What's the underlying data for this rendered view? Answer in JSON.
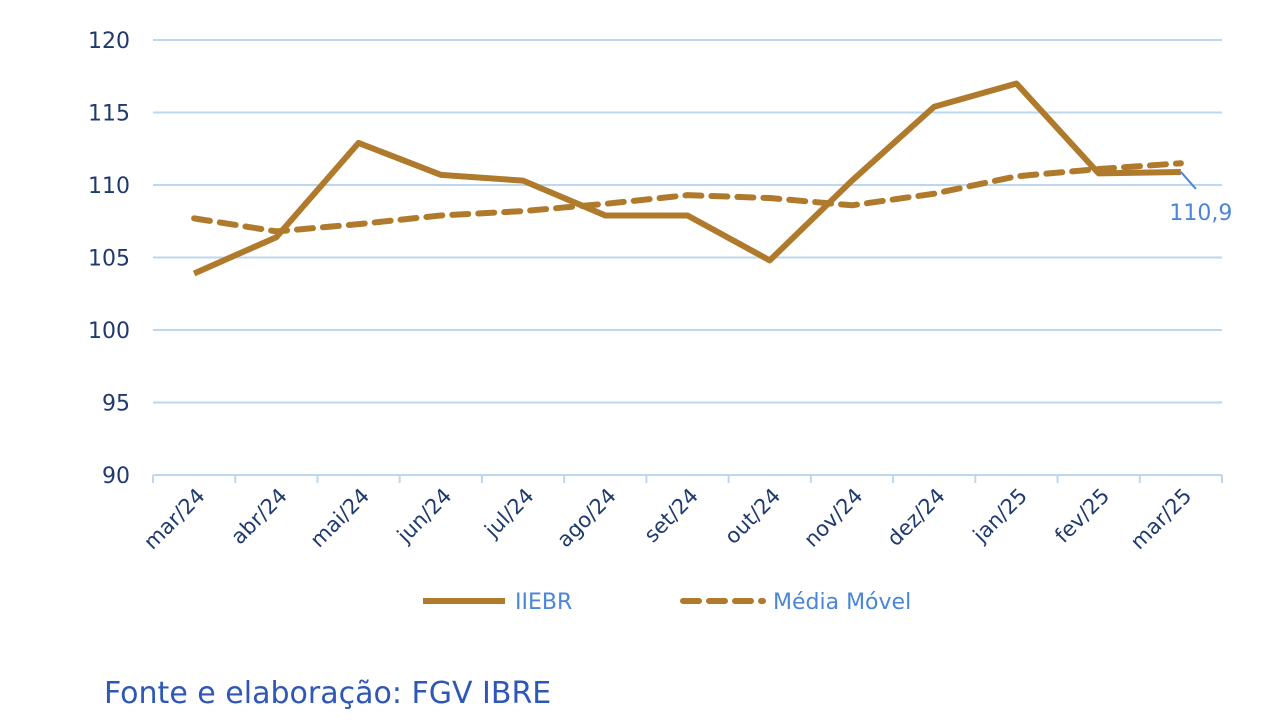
{
  "chart_data": {
    "type": "line",
    "categories": [
      "mar/24",
      "abr/24",
      "mai/24",
      "jun/24",
      "jul/24",
      "ago/24",
      "set/24",
      "out/24",
      "nov/24",
      "dez/24",
      "jan/25",
      "fev/25",
      "mar/25"
    ],
    "series": [
      {
        "name": "IIEBR",
        "style": "solid",
        "values": [
          103.9,
          106.4,
          112.9,
          110.7,
          110.3,
          107.9,
          107.9,
          104.8,
          110.3,
          115.4,
          117.0,
          110.8,
          110.9
        ]
      },
      {
        "name": "Média Móvel",
        "style": "dashed",
        "values": [
          107.7,
          106.8,
          107.3,
          107.9,
          108.2,
          108.7,
          109.3,
          109.1,
          108.6,
          109.4,
          110.6,
          111.1,
          111.5
        ]
      }
    ],
    "ylim": [
      90,
      120
    ],
    "yticks": [
      90,
      95,
      100,
      105,
      110,
      115,
      120
    ],
    "grid": true,
    "legend": "bottom",
    "annotation": {
      "category": "mar/25",
      "series": "IIEBR",
      "text": "110,9"
    },
    "colors": {
      "line": "#B07A2C",
      "axis_text": "#1F3A6E",
      "grid": "#BDD7EE",
      "annotation": "#4A86D8",
      "legend_text": "#4A86D8"
    }
  },
  "source": "Fonte e elaboração: FGV IBRE"
}
